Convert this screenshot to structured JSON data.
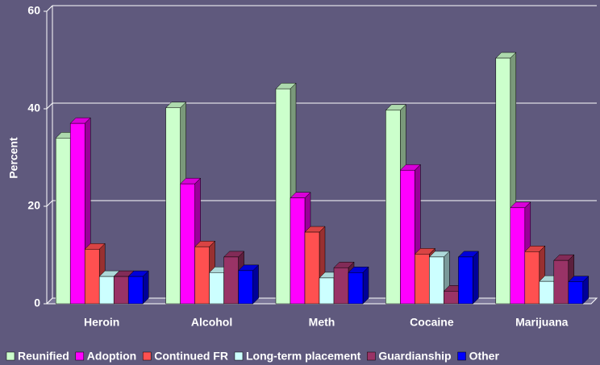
{
  "chart_data": {
    "type": "bar",
    "y_label": "Percent",
    "categories": [
      "Heroin",
      "Alcohol",
      "Meth",
      "Cocaine",
      "Marijuana"
    ],
    "series": [
      {
        "name": "Reunified",
        "color": "#ccffcc",
        "values": [
          34,
          40.2,
          44.1,
          39.7,
          50.4
        ]
      },
      {
        "name": "Adoption",
        "color": "#ff00ff",
        "values": [
          37,
          24.6,
          21.7,
          27.4,
          19.7
        ]
      },
      {
        "name": "Continued FR",
        "color": "#ff5050",
        "values": [
          11.2,
          11.7,
          14.7,
          10.2,
          10.7
        ]
      },
      {
        "name": "Long-term placement",
        "color": "#ccffff",
        "values": [
          5.6,
          6.4,
          5.3,
          9.6,
          4.6
        ]
      },
      {
        "name": "Guardianship",
        "color": "#993366",
        "values": [
          5.6,
          9.6,
          7.4,
          2.6,
          8.9
        ]
      },
      {
        "name": "Other",
        "color": "#0000ff",
        "values": [
          5.6,
          6.8,
          6.4,
          9.6,
          4.5
        ]
      }
    ],
    "ylim": [
      0,
      60
    ],
    "yticks": [
      0,
      20,
      40,
      60
    ],
    "grid": true
  }
}
